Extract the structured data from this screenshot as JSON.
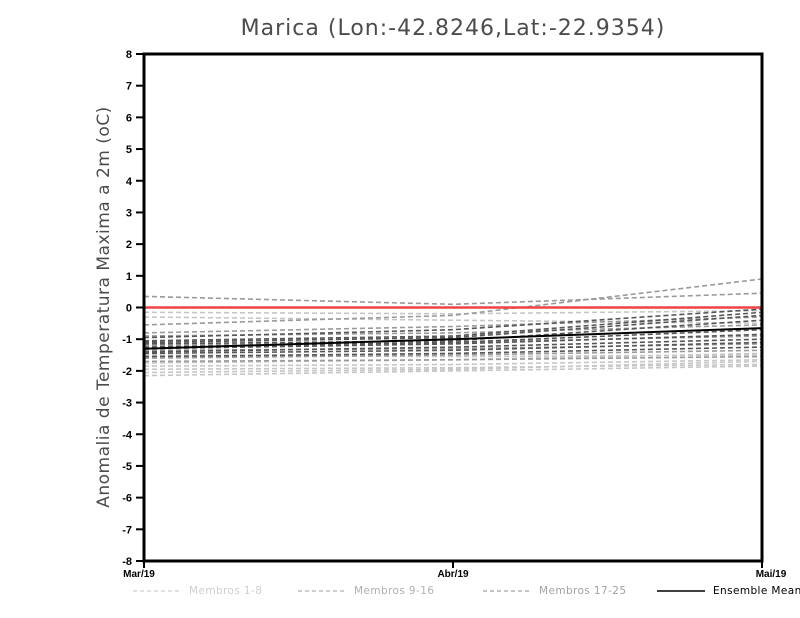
{
  "chart_data": {
    "type": "line",
    "title": "Marica (Lon:-42.8246,Lat:-22.9354)",
    "ylabel": "Anomalia de Temperatura Maxima a 2m (oC)",
    "xlabel": "",
    "ylim": [
      -8,
      8
    ],
    "y_ticks": [
      8,
      7,
      6,
      5,
      4,
      3,
      2,
      1,
      0,
      -1,
      -2,
      -3,
      -4,
      -5,
      -6,
      -7,
      -8
    ],
    "x": [
      "Mar/19",
      "Abr/19",
      "Mai/19"
    ],
    "grid": false,
    "legend_position": "bottom",
    "series": [
      {
        "name": "Membros 1-8",
        "style": "dashed",
        "color": "#c6c6c6",
        "legend_color": "#cfcfcf",
        "members": [
          [
            -0.15,
            -0.2,
            -0.1
          ],
          [
            -0.3,
            -0.4,
            -0.5
          ],
          [
            -1.5,
            -1.55,
            -1.5
          ],
          [
            -1.75,
            -1.65,
            -1.45
          ],
          [
            -1.85,
            -1.8,
            -1.65
          ],
          [
            -1.95,
            -1.9,
            -1.8
          ],
          [
            -2.05,
            -1.95,
            -1.7
          ],
          [
            -2.15,
            -2.0,
            -1.85
          ]
        ]
      },
      {
        "name": "Membros 9-16",
        "style": "dashed",
        "color": "#9a9a9a",
        "legend_color": "#b0b0b0",
        "members": [
          [
            0.35,
            0.1,
            0.45
          ],
          [
            -0.55,
            -0.25,
            0.9
          ],
          [
            -0.8,
            -0.6,
            -0.3
          ],
          [
            -0.9,
            -0.8,
            -0.55
          ],
          [
            -1.2,
            -1.1,
            -0.9
          ],
          [
            -1.35,
            -1.3,
            -1.15
          ],
          [
            -1.6,
            -1.5,
            -1.35
          ],
          [
            -1.7,
            -1.65,
            -1.55
          ]
        ]
      },
      {
        "name": "Membros 17-25",
        "style": "dashed",
        "color": "#565656",
        "legend_color": "#a2a2a2",
        "members": [
          [
            -0.95,
            -0.7,
            -0.05
          ],
          [
            -1.05,
            -0.9,
            -0.15
          ],
          [
            -1.1,
            -0.95,
            -0.25
          ],
          [
            -1.15,
            -1.05,
            -0.4
          ],
          [
            -1.25,
            -1.1,
            -0.7
          ],
          [
            -1.3,
            -1.15,
            -0.85
          ],
          [
            -1.4,
            -1.25,
            -1.0
          ],
          [
            -1.45,
            -1.35,
            -1.1
          ],
          [
            -1.55,
            -1.45,
            -1.25
          ]
        ]
      }
    ],
    "ensemble_mean": {
      "name": "Ensemble Mean",
      "color": "#000000",
      "style": "solid",
      "values": [
        -1.3,
        -1.0,
        -0.65
      ]
    },
    "reference_line": {
      "name": "zero-anomaly-reference",
      "color": "#ee4444",
      "style": "solid",
      "values": [
        0,
        0,
        0
      ]
    },
    "axis_color": "#000000"
  },
  "legend": {
    "entries": [
      {
        "label": "Membros 1-8",
        "color": "#cfcfcf",
        "line": "dashed"
      },
      {
        "label": "Membros 9-16",
        "color": "#b0b0b0",
        "line": "dashed"
      },
      {
        "label": "Membros 17-25",
        "color": "#a2a2a2",
        "line": "dashed"
      },
      {
        "label": "Ensemble Mean",
        "color": "#000000",
        "line": "solid"
      }
    ]
  }
}
